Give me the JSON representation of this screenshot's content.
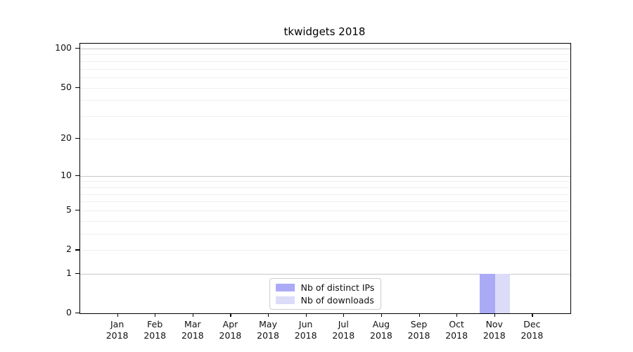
{
  "chart_data": {
    "type": "bar",
    "title": "tkwidgets 2018",
    "x_year": "2018",
    "x_categories": [
      "Jan",
      "Feb",
      "Mar",
      "Apr",
      "May",
      "Jun",
      "Jul",
      "Aug",
      "Sep",
      "Oct",
      "Nov",
      "Dec"
    ],
    "series": [
      {
        "name": "Nb of distinct IPs",
        "color": "#aaaaf7",
        "values": [
          0,
          0,
          0,
          0,
          0,
          0,
          0,
          0,
          0,
          0,
          1,
          0
        ]
      },
      {
        "name": "Nb of downloads",
        "color": "#dcdcf8",
        "values": [
          0,
          0,
          0,
          0,
          0,
          0,
          0,
          0,
          0,
          0,
          1,
          0
        ]
      }
    ],
    "y_scale": "log1p",
    "ylim": [
      0,
      109
    ],
    "y_ticks": [
      0,
      1,
      2,
      5,
      10,
      20,
      50,
      100
    ],
    "gridlines": {
      "major": [
        1,
        10,
        100
      ],
      "minor": [
        2,
        3,
        4,
        5,
        6,
        7,
        8,
        9,
        20,
        30,
        40,
        50,
        60,
        70,
        80,
        90
      ]
    },
    "bar_width_fraction": 0.4,
    "legend_position": "lower center",
    "colors": {
      "major_grid": "#c8c8c8",
      "minor_grid": "#efefef",
      "axis": "#000000",
      "background": "#ffffff"
    }
  }
}
